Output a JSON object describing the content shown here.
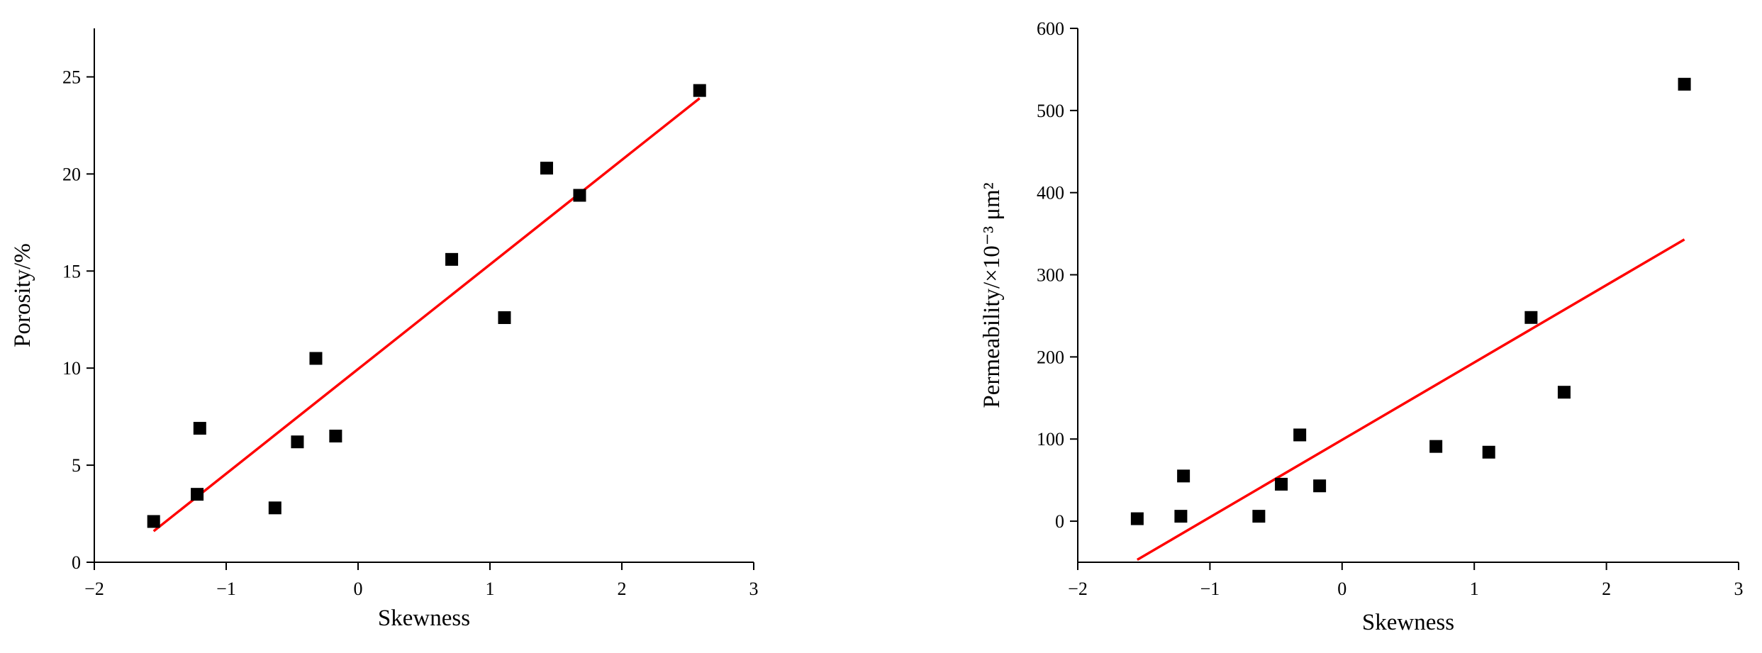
{
  "chart_data": [
    {
      "type": "scatter",
      "xlabel": "Skewness",
      "ylabel": "Porosity/%",
      "xlim": [
        -2,
        3
      ],
      "ylim": [
        0,
        27.5
      ],
      "xticks": [
        -2,
        -1,
        0,
        1,
        2,
        3
      ],
      "yticks": [
        0,
        5,
        10,
        15,
        20,
        25
      ],
      "xtick_labels": [
        "−2",
        "−1",
        "0",
        "1",
        "2",
        "3"
      ],
      "ytick_labels": [
        "0",
        "5",
        "10",
        "15",
        "20",
        "25"
      ],
      "grid": false,
      "point_color": "#000000",
      "fit_color": "#ff0000",
      "points": [
        {
          "x": -1.55,
          "y": 2.1
        },
        {
          "x": -1.22,
          "y": 3.5
        },
        {
          "x": -1.2,
          "y": 6.9
        },
        {
          "x": -0.63,
          "y": 2.8
        },
        {
          "x": -0.46,
          "y": 6.2
        },
        {
          "x": -0.32,
          "y": 10.5
        },
        {
          "x": -0.17,
          "y": 6.5
        },
        {
          "x": 0.71,
          "y": 15.6
        },
        {
          "x": 1.11,
          "y": 12.6
        },
        {
          "x": 1.43,
          "y": 20.3
        },
        {
          "x": 1.68,
          "y": 18.9
        },
        {
          "x": 2.59,
          "y": 24.3
        }
      ],
      "fit_line": [
        {
          "x": -1.55,
          "y": 1.6
        },
        {
          "x": 2.59,
          "y": 23.9
        }
      ]
    },
    {
      "type": "scatter",
      "xlabel": "Skewness",
      "ylabel": "Permeability/×10⁻³ μm²",
      "xlim": [
        -2,
        3
      ],
      "ylim": [
        -50,
        600
      ],
      "xticks": [
        -2,
        -1,
        0,
        1,
        2,
        3
      ],
      "yticks": [
        0,
        100,
        200,
        300,
        400,
        500,
        600
      ],
      "xtick_labels": [
        "−2",
        "−1",
        "0",
        "1",
        "2",
        "3"
      ],
      "ytick_labels": [
        "0",
        "100",
        "200",
        "300",
        "400",
        "500",
        "600"
      ],
      "grid": false,
      "point_color": "#000000",
      "fit_color": "#ff0000",
      "points": [
        {
          "x": -1.55,
          "y": 3
        },
        {
          "x": -1.22,
          "y": 6
        },
        {
          "x": -1.2,
          "y": 55
        },
        {
          "x": -0.63,
          "y": 6
        },
        {
          "x": -0.46,
          "y": 45
        },
        {
          "x": -0.32,
          "y": 105
        },
        {
          "x": -0.17,
          "y": 43
        },
        {
          "x": 0.71,
          "y": 91
        },
        {
          "x": 1.11,
          "y": 84
        },
        {
          "x": 1.43,
          "y": 248
        },
        {
          "x": 1.68,
          "y": 157
        },
        {
          "x": 2.59,
          "y": 532
        }
      ],
      "fit_line": [
        {
          "x": -1.55,
          "y": -47
        },
        {
          "x": 2.59,
          "y": 343
        }
      ]
    }
  ]
}
